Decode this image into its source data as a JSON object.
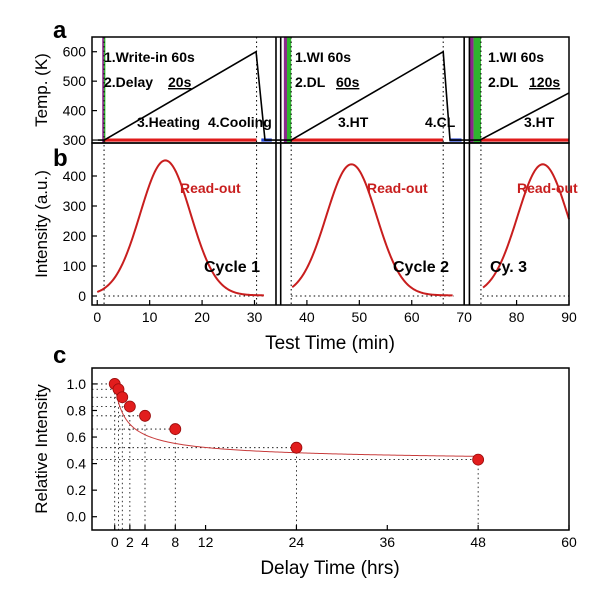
{
  "panels": {
    "a": {
      "letter": "a",
      "ylabel": "Temp. (K)",
      "yticks": [
        300,
        400,
        500,
        600
      ],
      "ylim": [
        290,
        650
      ],
      "annotations": [
        {
          "text": "1.Write-in 60s",
          "color": "#7a1f7a"
        },
        {
          "text": "2.Delay ",
          "color": "#2fb52f"
        },
        {
          "text": "20s",
          "color": "#2fb52f"
        },
        {
          "text": "3.Heating",
          "color": "#d21f1f"
        },
        {
          "text": "4.Cooling",
          "color": "#1f3fd2"
        },
        {
          "text": "1.WI 60s",
          "color": "#7a1f7a"
        },
        {
          "text": "2.DL ",
          "color": "#2fb52f"
        },
        {
          "text": "60s",
          "color": "#2fb52f"
        },
        {
          "text": "3.HT",
          "color": "#d21f1f"
        },
        {
          "text": "4.CL",
          "color": "#1f3fd2"
        },
        {
          "text": "1.WI 60s",
          "color": "#7a1f7a"
        },
        {
          "text": "2.DL ",
          "color": "#2fb52f"
        },
        {
          "text": "120s",
          "color": "#2fb52f"
        },
        {
          "text": "3.HT",
          "color": "#d21f1f"
        }
      ]
    },
    "b": {
      "letter": "b",
      "ylabel": "Intensity (a.u.)",
      "yticks": [
        0,
        100,
        200,
        300,
        400
      ],
      "ylim": [
        -30,
        510
      ],
      "readout_label": "Read-out",
      "cycles": [
        "Cycle 1",
        "Cycle 2",
        "Cy. 3"
      ]
    },
    "ab_xaxis": {
      "title": "Test Time (min)",
      "ticks": [
        0,
        10,
        20,
        30,
        40,
        50,
        60,
        70,
        80,
        90
      ],
      "xlim": [
        -1,
        90
      ]
    },
    "c": {
      "letter": "c",
      "ylabel": "Relative Intensity",
      "xlabel": "Delay Time (hrs)",
      "yticks": [
        0.0,
        0.2,
        0.4,
        0.6,
        0.8,
        1.0
      ],
      "ytick_labels": [
        "0.0",
        "0.2",
        "0.4",
        "0.6",
        "0.8",
        "1.0"
      ],
      "xticks": [
        0,
        2,
        4,
        8,
        12,
        24,
        36,
        48,
        60
      ],
      "ylim": [
        -0.1,
        1.12
      ],
      "xlim": [
        -3,
        60
      ]
    }
  },
  "chart_data": [
    {
      "type": "line",
      "panel": "a",
      "x": [
        0,
        1,
        1.33,
        30.3,
        32,
        33,
        34.1,
        35,
        36,
        37,
        66,
        67.3,
        69,
        70,
        71,
        73,
        90
      ],
      "series": [
        {
          "name": "Temperature",
          "values": [
            300,
            300,
            300,
            600,
            300,
            300,
            300,
            300,
            300,
            300,
            600,
            300,
            300,
            300,
            300,
            300,
            460
          ]
        }
      ],
      "xlim": [
        -1,
        90
      ],
      "ylim": [
        290,
        650
      ],
      "xlabel": "Test Time (min)",
      "ylabel": "Temp. (K)"
    },
    {
      "type": "line",
      "panel": "b",
      "series": [
        {
          "name": "Read-out",
          "peaks": [
            {
              "center": 13,
              "height": 450
            },
            {
              "center": 48.5,
              "height": 437
            },
            {
              "center": 85,
              "height": 437
            }
          ]
        }
      ],
      "xlim": [
        -1,
        90
      ],
      "ylim": [
        -30,
        510
      ],
      "xlabel": "Test Time (min)",
      "ylabel": "Intensity (a.u.)"
    },
    {
      "type": "scatter",
      "panel": "c",
      "x": [
        0,
        0.5,
        1,
        2,
        4,
        8,
        24,
        48
      ],
      "y": [
        1.0,
        0.96,
        0.9,
        0.83,
        0.76,
        0.66,
        0.52,
        0.43
      ],
      "xlim": [
        -3,
        60
      ],
      "ylim": [
        -0.1,
        1.12
      ],
      "xlabel": "Delay Time (hrs)",
      "ylabel": "Relative Intensity"
    }
  ],
  "colors": {
    "temp_line": "#000000",
    "heating": "#e01b1b",
    "cooling": "#1f3fd2",
    "write_in": "#8a2a8a",
    "delay": "#2fb52f",
    "intensity_curve": "#c81e1e",
    "marker": "#e21d1d",
    "fit": "#c83c3c"
  }
}
